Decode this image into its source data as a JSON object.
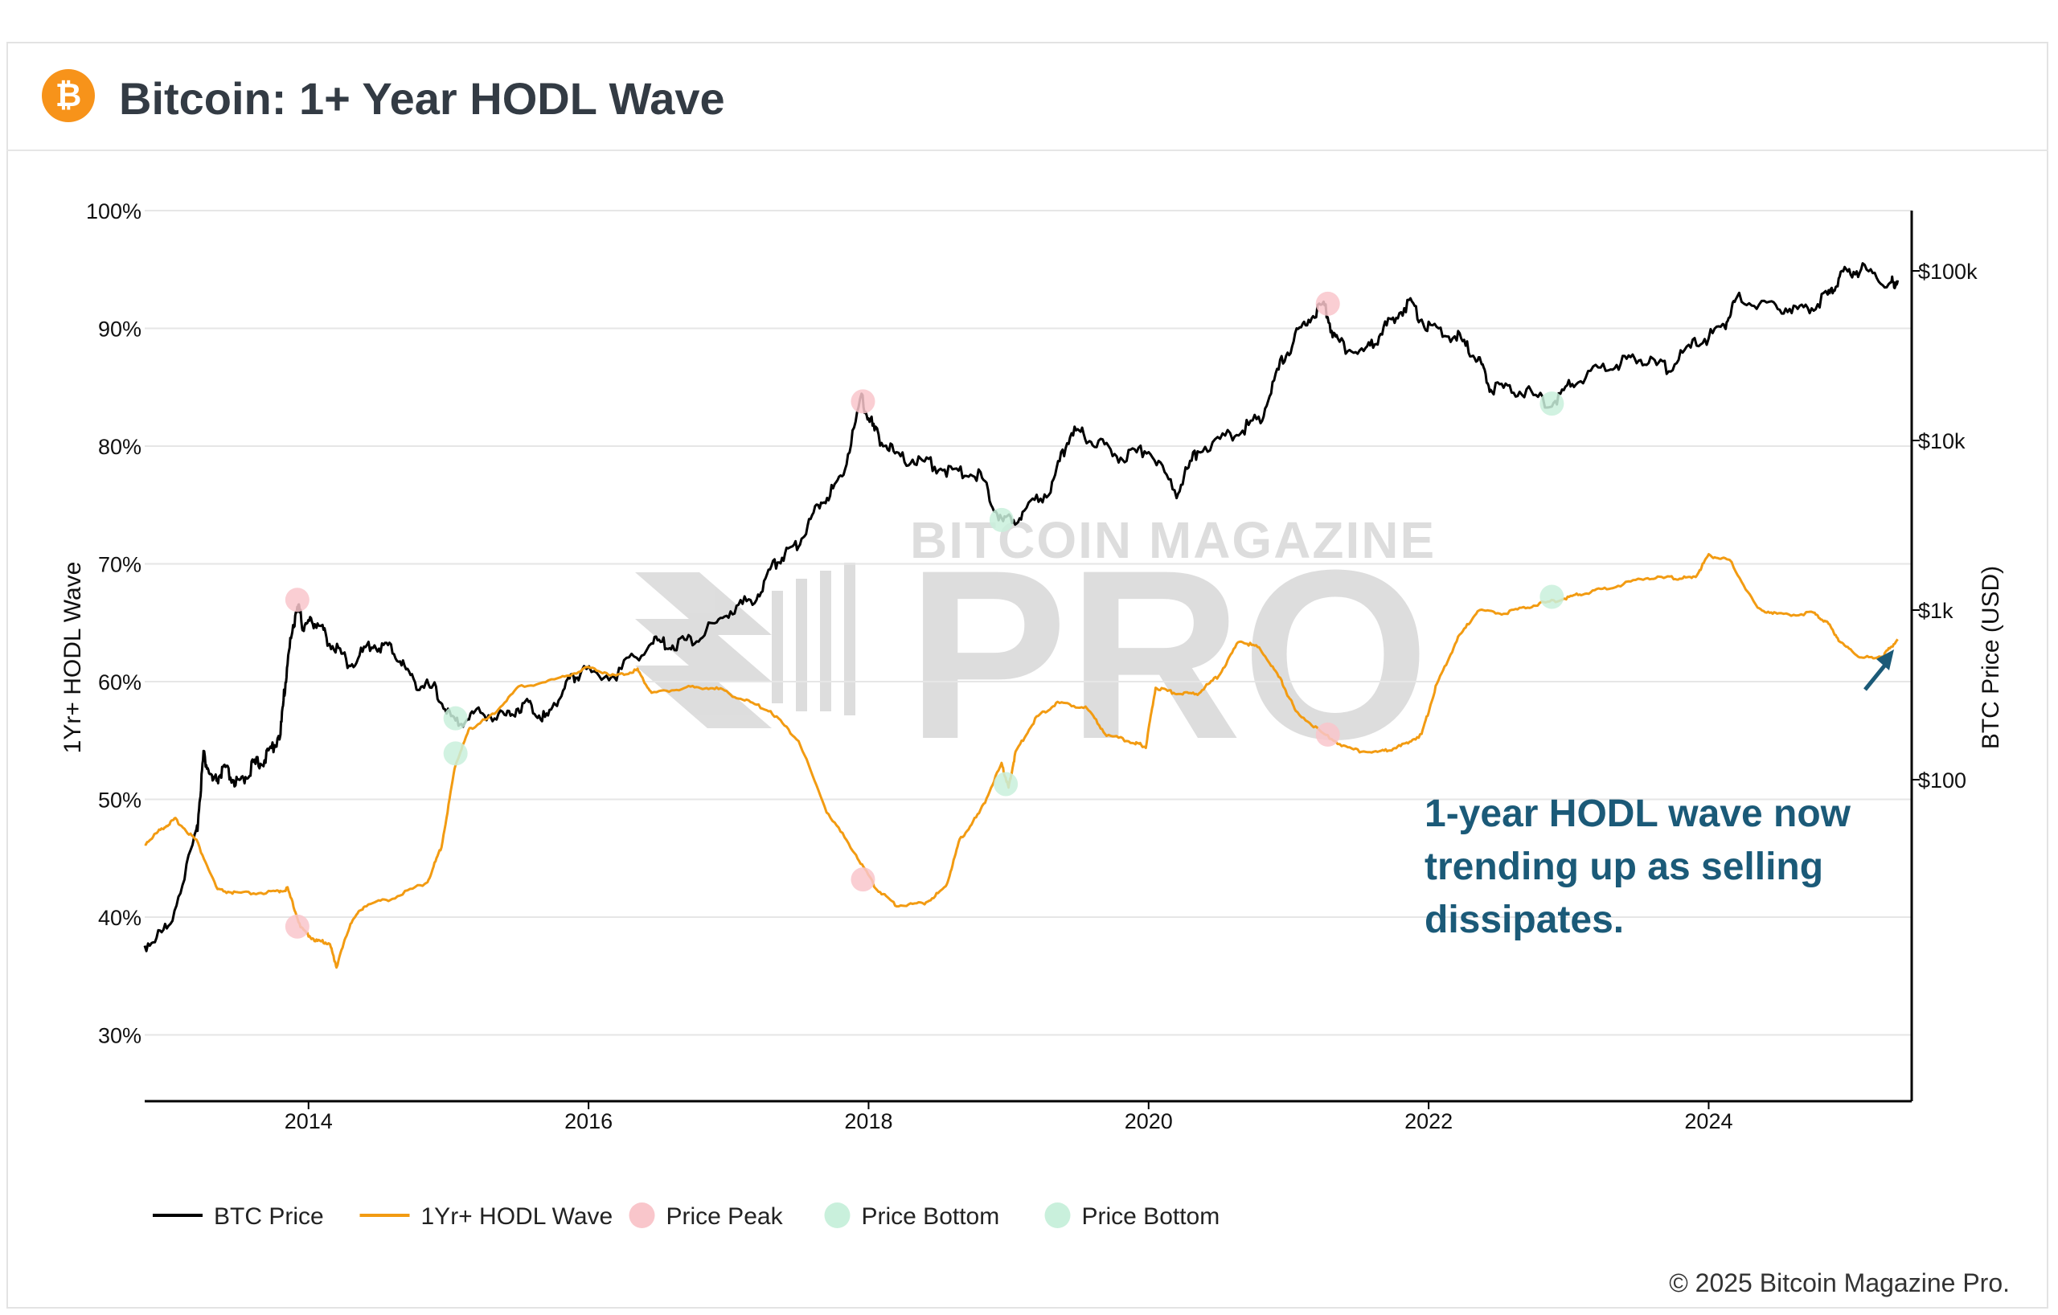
{
  "header": {
    "title": "Bitcoin: 1+ Year HODL Wave",
    "logo_glyph": "₿",
    "logo_color": "#f7931a"
  },
  "annotation": "1-year HODL wave now trending up as selling dissipates.",
  "copyright": "© 2025 Bitcoin Magazine Pro.",
  "watermark": {
    "line1": "BITCOIN MAGAZINE",
    "line2": "PRO"
  },
  "colors": {
    "btc_price": "#000000",
    "hodl_wave": "#f29b12",
    "price_peak": "#f9c6cb",
    "price_bottom": "#c9f0dc",
    "annotation": "#1b5a78",
    "arrow": "#1b5a78"
  },
  "chart_data": {
    "type": "line",
    "title": "Bitcoin: 1+ Year HODL Wave",
    "xlabel": "",
    "ylabel_left": "1Yr+ HODL Wave",
    "ylabel_right": "BTC Price (USD)",
    "x_range": [
      2012.83,
      2025.45
    ],
    "y_left_range": [
      24,
      100
    ],
    "y_left_ticks": [
      30,
      40,
      50,
      60,
      70,
      80,
      90,
      100
    ],
    "y_left_tick_labels": [
      "30%",
      "40%",
      "50%",
      "60%",
      "70%",
      "80%",
      "90%",
      "100%"
    ],
    "y_right_scale": "log",
    "y_right_ticks": [
      100,
      1000,
      10000,
      100000
    ],
    "y_right_tick_labels": [
      "$100",
      "$1k",
      "$10k",
      "$100k"
    ],
    "x_ticks": [
      2014,
      2016,
      2018,
      2020,
      2022,
      2024
    ],
    "x_tick_labels": [
      "2014",
      "2016",
      "2018",
      "2020",
      "2022",
      "2024"
    ],
    "grid": true,
    "legend_position": "bottom-left",
    "legend": [
      "BTC Price",
      "1Yr+ HODL Wave",
      "Price Peak",
      "Price Bottom",
      "Price Bottom"
    ],
    "series": [
      {
        "name": "BTC Price",
        "axis": "right",
        "points": [
          [
            2012.83,
            10.5
          ],
          [
            2013.0,
            13.5
          ],
          [
            2013.2,
            47
          ],
          [
            2013.25,
            140
          ],
          [
            2013.32,
            95
          ],
          [
            2013.4,
            115
          ],
          [
            2013.5,
            92
          ],
          [
            2013.6,
            120
          ],
          [
            2013.7,
            135
          ],
          [
            2013.8,
            190
          ],
          [
            2013.85,
            500
          ],
          [
            2013.92,
            1100
          ],
          [
            2013.96,
            800
          ],
          [
            2014.05,
            870
          ],
          [
            2014.15,
            650
          ],
          [
            2014.3,
            480
          ],
          [
            2014.45,
            630
          ],
          [
            2014.6,
            590
          ],
          [
            2014.75,
            380
          ],
          [
            2014.9,
            340
          ],
          [
            2015.05,
            210
          ],
          [
            2015.2,
            250
          ],
          [
            2015.4,
            235
          ],
          [
            2015.55,
            285
          ],
          [
            2015.7,
            230
          ],
          [
            2015.85,
            380
          ],
          [
            2015.95,
            430
          ],
          [
            2016.2,
            420
          ],
          [
            2016.45,
            650
          ],
          [
            2016.6,
            620
          ],
          [
            2016.8,
            700
          ],
          [
            2017.0,
            970
          ],
          [
            2017.2,
            1200
          ],
          [
            2017.35,
            2000
          ],
          [
            2017.5,
            2500
          ],
          [
            2017.65,
            4300
          ],
          [
            2017.8,
            5800
          ],
          [
            2017.95,
            17500
          ],
          [
            2018.05,
            11000
          ],
          [
            2018.2,
            8000
          ],
          [
            2018.4,
            7500
          ],
          [
            2018.6,
            6500
          ],
          [
            2018.8,
            6300
          ],
          [
            2018.95,
            3300
          ],
          [
            2019.1,
            3600
          ],
          [
            2019.3,
            5300
          ],
          [
            2019.45,
            11500
          ],
          [
            2019.6,
            10200
          ],
          [
            2019.8,
            8000
          ],
          [
            2020.0,
            8900
          ],
          [
            2020.2,
            5000
          ],
          [
            2020.35,
            8800
          ],
          [
            2020.6,
            10800
          ],
          [
            2020.8,
            13500
          ],
          [
            2020.95,
            29000
          ],
          [
            2021.1,
            48000
          ],
          [
            2021.25,
            62000
          ],
          [
            2021.35,
            37000
          ],
          [
            2021.55,
            33000
          ],
          [
            2021.7,
            47000
          ],
          [
            2021.86,
            65000
          ],
          [
            2022.0,
            46000
          ],
          [
            2022.2,
            41000
          ],
          [
            2022.35,
            30000
          ],
          [
            2022.45,
            20000
          ],
          [
            2022.65,
            20000
          ],
          [
            2022.88,
            16500
          ],
          [
            2023.05,
            23000
          ],
          [
            2023.3,
            28000
          ],
          [
            2023.5,
            30500
          ],
          [
            2023.7,
            26500
          ],
          [
            2023.9,
            37000
          ],
          [
            2024.1,
            45000
          ],
          [
            2024.2,
            68000
          ],
          [
            2024.45,
            63000
          ],
          [
            2024.65,
            58000
          ],
          [
            2024.85,
            70000
          ],
          [
            2024.95,
            97000
          ],
          [
            2025.1,
            102000
          ],
          [
            2025.3,
            84000
          ],
          [
            2025.35,
            88000
          ]
        ]
      },
      {
        "name": "1Yr+ HODL Wave",
        "axis": "left",
        "points": [
          [
            2012.83,
            46.2
          ],
          [
            2012.95,
            47.5
          ],
          [
            2013.05,
            48.3
          ],
          [
            2013.2,
            46.5
          ],
          [
            2013.35,
            42.3
          ],
          [
            2013.5,
            42.0
          ],
          [
            2013.75,
            42.1
          ],
          [
            2013.85,
            42.4
          ],
          [
            2013.95,
            39.0
          ],
          [
            2014.05,
            38.0
          ],
          [
            2014.15,
            37.8
          ],
          [
            2014.2,
            35.8
          ],
          [
            2014.3,
            39.5
          ],
          [
            2014.4,
            41.0
          ],
          [
            2014.6,
            41.6
          ],
          [
            2014.85,
            43.0
          ],
          [
            2014.95,
            46.0
          ],
          [
            2015.05,
            53.0
          ],
          [
            2015.15,
            56.0
          ],
          [
            2015.3,
            57.0
          ],
          [
            2015.5,
            59.5
          ],
          [
            2015.8,
            60.3
          ],
          [
            2016.0,
            61.2
          ],
          [
            2016.2,
            60.5
          ],
          [
            2016.35,
            61.0
          ],
          [
            2016.45,
            59.0
          ],
          [
            2016.7,
            59.5
          ],
          [
            2016.9,
            59.5
          ],
          [
            2017.1,
            58.5
          ],
          [
            2017.3,
            57.5
          ],
          [
            2017.5,
            55.0
          ],
          [
            2017.7,
            49.0
          ],
          [
            2017.9,
            45.5
          ],
          [
            2018.05,
            42.5
          ],
          [
            2018.2,
            41.0
          ],
          [
            2018.4,
            41.2
          ],
          [
            2018.55,
            42.5
          ],
          [
            2018.65,
            46.5
          ],
          [
            2018.8,
            49.0
          ],
          [
            2018.95,
            53.0
          ],
          [
            2019.0,
            51.0
          ],
          [
            2019.05,
            54.0
          ],
          [
            2019.2,
            57.0
          ],
          [
            2019.35,
            58.2
          ],
          [
            2019.55,
            57.8
          ],
          [
            2019.7,
            55.5
          ],
          [
            2019.9,
            54.8
          ],
          [
            2019.98,
            54.5
          ],
          [
            2020.05,
            59.5
          ],
          [
            2020.2,
            59.0
          ],
          [
            2020.35,
            59.0
          ],
          [
            2020.5,
            60.5
          ],
          [
            2020.65,
            63.5
          ],
          [
            2020.8,
            62.8
          ],
          [
            2020.95,
            60.0
          ],
          [
            2021.05,
            57.5
          ],
          [
            2021.25,
            55.5
          ],
          [
            2021.45,
            54.2
          ],
          [
            2021.65,
            54.0
          ],
          [
            2021.8,
            54.5
          ],
          [
            2021.95,
            55.5
          ],
          [
            2022.05,
            59.5
          ],
          [
            2022.2,
            63.5
          ],
          [
            2022.35,
            66.0
          ],
          [
            2022.55,
            65.8
          ],
          [
            2022.75,
            66.5
          ],
          [
            2022.95,
            67.0
          ],
          [
            2023.1,
            67.5
          ],
          [
            2023.3,
            68.0
          ],
          [
            2023.55,
            68.8
          ],
          [
            2023.75,
            68.8
          ],
          [
            2023.9,
            68.8
          ],
          [
            2024.0,
            70.7
          ],
          [
            2024.15,
            70.3
          ],
          [
            2024.35,
            66.2
          ],
          [
            2024.5,
            65.7
          ],
          [
            2024.75,
            65.8
          ],
          [
            2024.85,
            65.0
          ],
          [
            2024.95,
            63.2
          ],
          [
            2025.1,
            62.0
          ],
          [
            2025.25,
            62.2
          ],
          [
            2025.35,
            63.6
          ]
        ]
      }
    ],
    "markers": [
      {
        "type": "Price Peak",
        "axis": "right",
        "x": 2013.92,
        "y": 1150
      },
      {
        "type": "Price Peak",
        "axis": "left",
        "x": 2013.92,
        "y": 39.2
      },
      {
        "type": "Price Peak",
        "axis": "right",
        "x": 2017.96,
        "y": 17000
      },
      {
        "type": "Price Peak",
        "axis": "left",
        "x": 2017.96,
        "y": 43.2
      },
      {
        "type": "Price Peak",
        "axis": "right",
        "x": 2021.28,
        "y": 64000
      },
      {
        "type": "Price Peak",
        "axis": "left",
        "x": 2021.28,
        "y": 55.5
      },
      {
        "type": "Price Bottom",
        "axis": "right",
        "x": 2015.05,
        "y": 230
      },
      {
        "type": "Price Bottom",
        "axis": "left",
        "x": 2015.05,
        "y": 53.9
      },
      {
        "type": "Price Bottom",
        "axis": "right",
        "x": 2018.95,
        "y": 3400
      },
      {
        "type": "Price Bottom",
        "axis": "left",
        "x": 2018.98,
        "y": 51.3
      },
      {
        "type": "Price Bottom",
        "axis": "right",
        "x": 2022.88,
        "y": 16500
      },
      {
        "type": "Price Bottom",
        "axis": "left",
        "x": 2022.88,
        "y": 67.2
      }
    ]
  }
}
